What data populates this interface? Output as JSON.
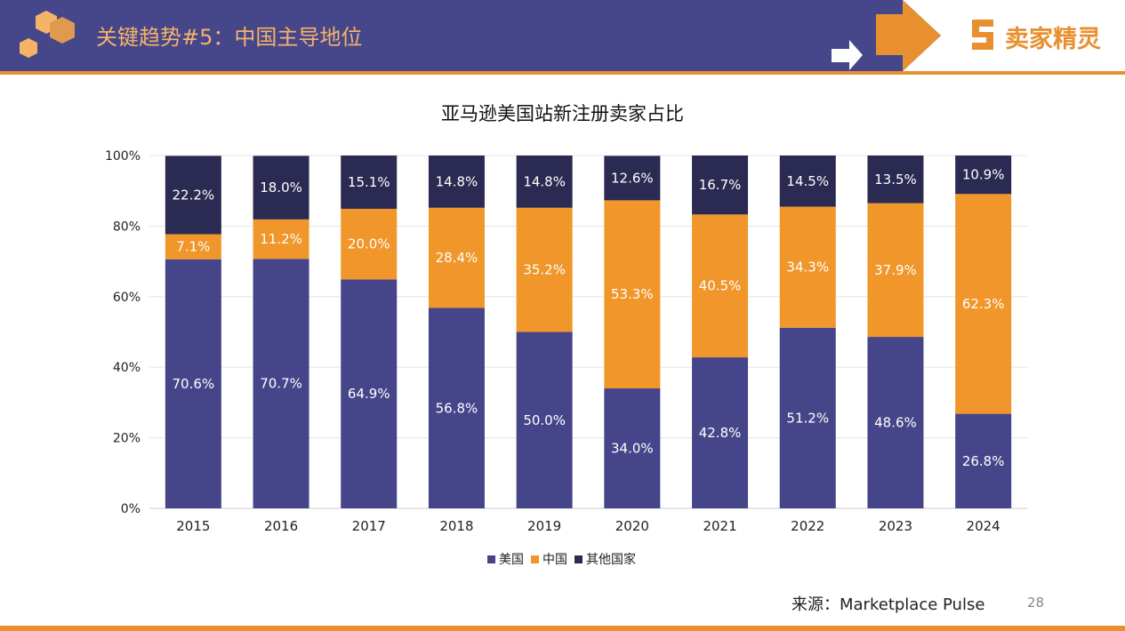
{
  "header": {
    "title": "关键趋势#5：中国主导地位",
    "logo_text": "卖家精灵"
  },
  "colors": {
    "header_bg": "#46468a",
    "accent": "#e8902f",
    "usa": "#46458a",
    "china": "#f0962a",
    "other": "#2a2a52"
  },
  "chart_data": {
    "type": "bar",
    "stacked": true,
    "title": "亚马逊美国站新注册卖家占比",
    "categories": [
      "2015",
      "2016",
      "2017",
      "2018",
      "2019",
      "2020",
      "2021",
      "2022",
      "2023",
      "2024"
    ],
    "series": [
      {
        "name": "美国",
        "color": "#46458a",
        "values": [
          70.6,
          70.7,
          64.9,
          56.8,
          50.0,
          34.0,
          42.8,
          51.2,
          48.6,
          26.8
        ]
      },
      {
        "name": "中国",
        "color": "#f0962a",
        "values": [
          7.1,
          11.2,
          20.0,
          28.4,
          35.2,
          53.3,
          40.5,
          34.3,
          37.9,
          62.3
        ]
      },
      {
        "name": "其他国家",
        "color": "#2a2a52",
        "values": [
          22.2,
          18.0,
          15.1,
          14.8,
          14.8,
          12.6,
          16.7,
          14.5,
          13.5,
          10.9
        ]
      }
    ],
    "yticks": [
      "0%",
      "20%",
      "40%",
      "60%",
      "80%",
      "100%"
    ],
    "ylim": [
      0,
      100
    ],
    "grid": true,
    "legend": "bottom"
  },
  "footer": {
    "source": "来源：Marketplace Pulse",
    "page": "28"
  }
}
